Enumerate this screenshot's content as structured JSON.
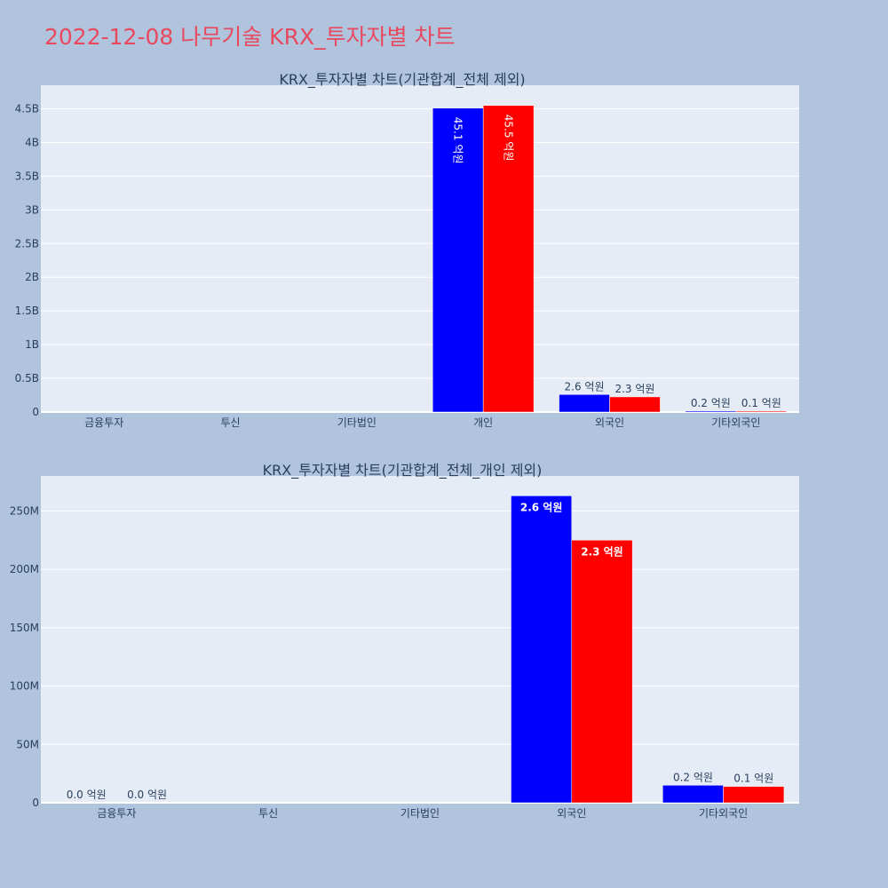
{
  "title": "2022-12-08 나무기술 KRX_투자자별 차트",
  "colors": {
    "title": "#e8495f",
    "background": "#b0c4de",
    "plot": "#e5ecf6",
    "series_1": "#0000ff",
    "series_2": "#ff0000",
    "text": "#2a3f5f"
  },
  "chart_data": [
    {
      "type": "bar",
      "title": "KRX_투자자별 차트(기관합계_전체 제외)",
      "categories": [
        "금융투자",
        "투신",
        "기타법인",
        "개인",
        "외국인",
        "기타외국인"
      ],
      "series": [
        {
          "values": [
            0,
            0,
            0,
            4510000000,
            260000000,
            15000000
          ],
          "labels": [
            "",
            "",
            "",
            "45.1 억원",
            "2.6 억원",
            "0.2 억원"
          ]
        },
        {
          "values": [
            0,
            0,
            0,
            4550000000,
            225000000,
            14000000
          ],
          "labels": [
            "",
            "",
            "",
            "45.5 억원",
            "2.3 억원",
            "0.1 억원"
          ]
        }
      ],
      "yticks": [
        {
          "value": 0,
          "label": "0"
        },
        {
          "value": 500000000,
          "label": "0.5B"
        },
        {
          "value": 1000000000,
          "label": "1B"
        },
        {
          "value": 1500000000,
          "label": "1.5B"
        },
        {
          "value": 2000000000,
          "label": "2B"
        },
        {
          "value": 2500000000,
          "label": "2.5B"
        },
        {
          "value": 3000000000,
          "label": "3B"
        },
        {
          "value": 3500000000,
          "label": "3.5B"
        },
        {
          "value": 4000000000,
          "label": "4B"
        },
        {
          "value": 4500000000,
          "label": "4.5B"
        }
      ],
      "ylim": [
        0,
        4850000000
      ],
      "xlabel": "",
      "ylabel": "",
      "grid": true,
      "legend": "none"
    },
    {
      "type": "bar",
      "title": "KRX_투자자별 차트(기관합계_전체_개인 제외)",
      "categories": [
        "금융투자",
        "투신",
        "기타법인",
        "외국인",
        "기타외국인"
      ],
      "series": [
        {
          "values": [
            0,
            0,
            0,
            263000000,
            15000000
          ],
          "labels": [
            "0.0 억원",
            "",
            "",
            "2.6 억원",
            "0.2 억원"
          ]
        },
        {
          "values": [
            0,
            0,
            0,
            225000000,
            14000000
          ],
          "labels": [
            "0.0 억원",
            "",
            "",
            "2.3 억원",
            "0.1 억원"
          ]
        }
      ],
      "yticks": [
        {
          "value": 0,
          "label": "0"
        },
        {
          "value": 50000000,
          "label": "50M"
        },
        {
          "value": 100000000,
          "label": "100M"
        },
        {
          "value": 150000000,
          "label": "150M"
        },
        {
          "value": 200000000,
          "label": "200M"
        },
        {
          "value": 250000000,
          "label": "250M"
        }
      ],
      "ylim": [
        0,
        280000000
      ],
      "xlabel": "",
      "ylabel": "",
      "grid": true,
      "legend": "none"
    }
  ]
}
